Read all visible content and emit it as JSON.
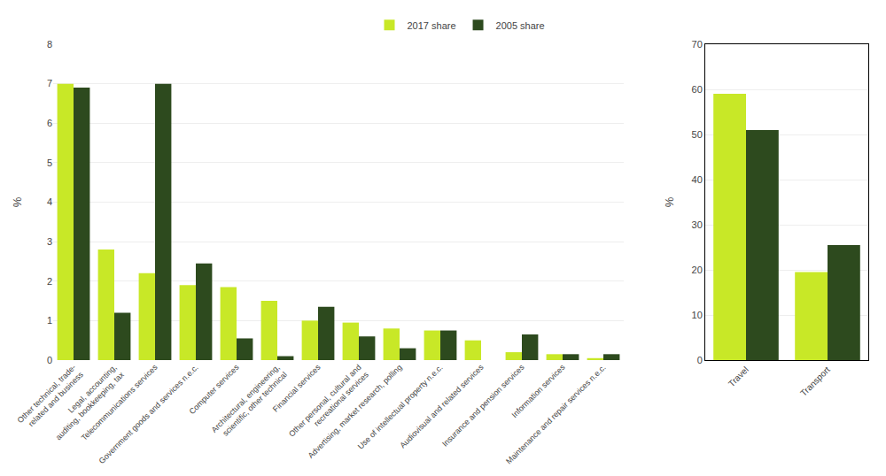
{
  "chart_data": [
    {
      "type": "bar",
      "categories": [
        "Other technical, trade-\nrelated and business",
        "Legal, accounting,\nauditing, bookkeeping, tax",
        "Telecommunications services",
        "Government goods and services n.e.c.",
        "Computer services",
        "Architectural, engineering,\nscientific, other technical",
        "Financial services",
        "Other personal, cultural and\nrecreational services",
        "Advertising, market research, polling",
        "Use of intellectual property n.e.c.",
        "Audiovisual and related services",
        "Insurance and pension services",
        "Information services",
        "Maintenance and repair services n.e.c."
      ],
      "series": [
        {
          "name": "2017 share",
          "color": "#c8e827",
          "values": [
            7.0,
            2.8,
            2.2,
            1.9,
            1.85,
            1.5,
            1.0,
            0.95,
            0.8,
            0.75,
            0.5,
            0.2,
            0.15,
            0.05
          ]
        },
        {
          "name": "2005 share",
          "color": "#2d4a1e",
          "values": [
            6.9,
            1.2,
            7.0,
            2.45,
            0.55,
            0.1,
            1.35,
            0.6,
            0.3,
            0.75,
            0.0,
            0.65,
            0.15,
            0.15
          ]
        }
      ],
      "ylabel": "%",
      "ylim": [
        0,
        8
      ],
      "yticks": [
        0,
        1,
        2,
        3,
        4,
        5,
        6,
        7,
        8
      ],
      "grid": true,
      "legend": "top"
    },
    {
      "type": "bar",
      "categories": [
        "Travel",
        "Transport"
      ],
      "series": [
        {
          "color": "#c8e827",
          "values": [
            59.0,
            19.5
          ]
        },
        {
          "color": "#2d4a1e",
          "values": [
            51.0,
            25.5
          ]
        }
      ],
      "ylabel": "%",
      "ylim": [
        0,
        70
      ],
      "yticks": [
        0,
        10,
        20,
        30,
        40,
        50,
        60,
        70
      ],
      "grid": true
    }
  ]
}
